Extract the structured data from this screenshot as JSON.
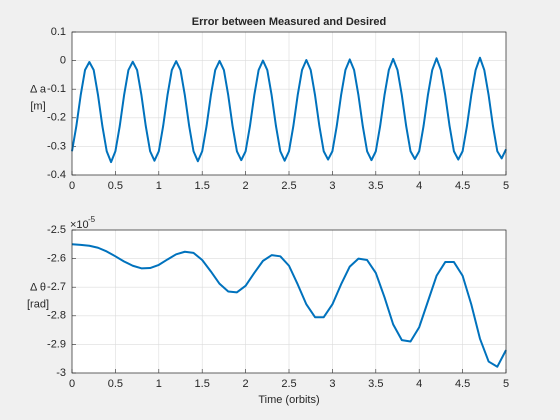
{
  "chart_data": [
    {
      "type": "line",
      "title": "Error between Measured and Desired",
      "ylabel": [
        "Δ a",
        "[m]"
      ],
      "xlim": [
        0,
        5
      ],
      "xticks": [
        0,
        0.5,
        1,
        1.5,
        2,
        2.5,
        3,
        3.5,
        4,
        4.5,
        5
      ],
      "ylim": [
        -0.4,
        0.1
      ],
      "yticks": [
        0.1,
        0,
        -0.1,
        -0.2,
        -0.3,
        -0.4
      ],
      "grid": true,
      "x": [
        0,
        0.05,
        0.1,
        0.15,
        0.2,
        0.25,
        0.3,
        0.35,
        0.4,
        0.45,
        0.5,
        0.55,
        0.6,
        0.65,
        0.7,
        0.75,
        0.8,
        0.85,
        0.9,
        0.95,
        1,
        1.05,
        1.1,
        1.15,
        1.2,
        1.25,
        1.3,
        1.35,
        1.4,
        1.45,
        1.5,
        1.55,
        1.6,
        1.65,
        1.7,
        1.75,
        1.8,
        1.85,
        1.9,
        1.95,
        2,
        2.05,
        2.1,
        2.15,
        2.2,
        2.25,
        2.3,
        2.35,
        2.4,
        2.45,
        2.5,
        2.55,
        2.6,
        2.65,
        2.7,
        2.75,
        2.8,
        2.85,
        2.9,
        2.95,
        3,
        3.05,
        3.1,
        3.15,
        3.2,
        3.25,
        3.3,
        3.35,
        3.4,
        3.45,
        3.5,
        3.55,
        3.6,
        3.65,
        3.7,
        3.75,
        3.8,
        3.85,
        3.9,
        3.95,
        4,
        4.05,
        4.1,
        4.15,
        4.2,
        4.25,
        4.3,
        4.35,
        4.4,
        4.45,
        4.5,
        4.55,
        4.6,
        4.65,
        4.7,
        4.75,
        4.8,
        4.85,
        4.9,
        4.95,
        5
      ],
      "series": [
        {
          "color": "#0072bd",
          "values": [
            -0.317,
            -0.229,
            -0.121,
            -0.033,
            -0.005,
            -0.033,
            -0.121,
            -0.229,
            -0.317,
            -0.355,
            -0.317,
            -0.229,
            -0.121,
            -0.033,
            -0.004,
            -0.033,
            -0.121,
            -0.229,
            -0.317,
            -0.35,
            -0.317,
            -0.229,
            -0.121,
            -0.033,
            -0.002,
            -0.033,
            -0.121,
            -0.229,
            -0.317,
            -0.352,
            -0.317,
            -0.229,
            -0.121,
            -0.033,
            -0.001,
            -0.033,
            -0.121,
            -0.229,
            -0.317,
            -0.348,
            -0.317,
            -0.229,
            -0.121,
            -0.033,
            0,
            -0.033,
            -0.121,
            -0.229,
            -0.317,
            -0.35,
            -0.317,
            -0.229,
            -0.121,
            -0.033,
            0.002,
            -0.033,
            -0.121,
            -0.229,
            -0.317,
            -0.346,
            -0.317,
            -0.229,
            -0.121,
            -0.033,
            0.004,
            -0.033,
            -0.121,
            -0.229,
            -0.317,
            -0.348,
            -0.317,
            -0.229,
            -0.121,
            -0.033,
            0.006,
            -0.033,
            -0.121,
            -0.229,
            -0.317,
            -0.344,
            -0.317,
            -0.229,
            -0.121,
            -0.033,
            0.008,
            -0.033,
            -0.121,
            -0.229,
            -0.317,
            -0.346,
            -0.317,
            -0.229,
            -0.121,
            -0.033,
            0.01,
            -0.033,
            -0.121,
            -0.229,
            -0.317,
            -0.342,
            -0.31
          ]
        }
      ]
    },
    {
      "type": "line",
      "ylabel": [
        "Δ θ",
        "[rad]"
      ],
      "xlabel": "Time (orbits)",
      "y_scale_label": "×10",
      "y_scale_exponent": "-5",
      "xlim": [
        0,
        5
      ],
      "xticks": [
        0,
        0.5,
        1,
        1.5,
        2,
        2.5,
        3,
        3.5,
        4,
        4.5,
        5
      ],
      "ylim": [
        -3,
        -2.5
      ],
      "yticks": [
        -2.5,
        -2.6,
        -2.7,
        -2.8,
        -2.9,
        -3
      ],
      "grid": true,
      "x": [
        0,
        0.1,
        0.2,
        0.3,
        0.4,
        0.5,
        0.6,
        0.7,
        0.8,
        0.9,
        1,
        1.1,
        1.2,
        1.3,
        1.4,
        1.5,
        1.6,
        1.7,
        1.8,
        1.9,
        2,
        2.1,
        2.2,
        2.3,
        2.4,
        2.5,
        2.6,
        2.7,
        2.8,
        2.9,
        3,
        3.1,
        3.2,
        3.3,
        3.4,
        3.5,
        3.6,
        3.7,
        3.8,
        3.9,
        4,
        4.1,
        4.2,
        4.3,
        4.4,
        4.5,
        4.6,
        4.7,
        4.8,
        4.9,
        5
      ],
      "series": [
        {
          "color": "#0072bd",
          "values": [
            -2.55,
            -2.552,
            -2.555,
            -2.562,
            -2.575,
            -2.592,
            -2.61,
            -2.625,
            -2.634,
            -2.633,
            -2.622,
            -2.603,
            -2.585,
            -2.576,
            -2.58,
            -2.605,
            -2.645,
            -2.688,
            -2.715,
            -2.718,
            -2.695,
            -2.65,
            -2.608,
            -2.588,
            -2.592,
            -2.625,
            -2.69,
            -2.76,
            -2.805,
            -2.805,
            -2.76,
            -2.69,
            -2.628,
            -2.6,
            -2.605,
            -2.65,
            -2.735,
            -2.83,
            -2.885,
            -2.89,
            -2.84,
            -2.75,
            -2.66,
            -2.612,
            -2.612,
            -2.66,
            -2.76,
            -2.88,
            -2.96,
            -2.978,
            -2.92
          ]
        }
      ]
    }
  ]
}
